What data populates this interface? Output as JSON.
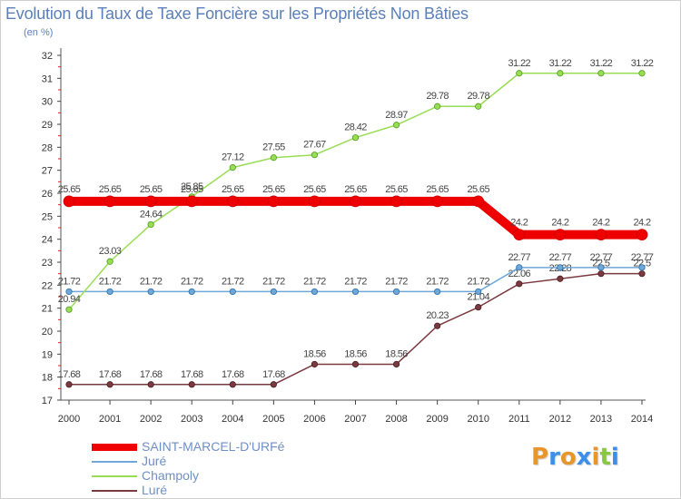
{
  "chart_data": {
    "type": "line",
    "title": "Evolution du Taux de Taxe Foncière sur les Propriétés Non Bâties",
    "ylabel": "(en %)",
    "xlabel": "",
    "x": [
      "2000",
      "2001",
      "2002",
      "2003",
      "2004",
      "2005",
      "2006",
      "2007",
      "2008",
      "2009",
      "2010",
      "2011",
      "2012",
      "2013",
      "2014"
    ],
    "ylim": [
      17,
      32
    ],
    "yticks": [
      17,
      18,
      19,
      20,
      21,
      22,
      23,
      24,
      25,
      26,
      27,
      28,
      29,
      30,
      31,
      32
    ],
    "grid": false,
    "series": [
      {
        "name": "SAINT-MARCEL-D'URFé",
        "color": "#ee0000",
        "values": [
          25.65,
          25.65,
          25.65,
          25.65,
          25.65,
          25.65,
          25.65,
          25.65,
          25.65,
          25.65,
          25.65,
          24.2,
          24.2,
          24.2,
          24.2
        ],
        "labels": [
          "25.65",
          "25.65",
          "25.65",
          "25.65",
          "25.65",
          "25.65",
          "25.65",
          "25.65",
          "25.65",
          "25.65",
          "25.65",
          "24.2",
          "24.2",
          "24.2",
          "24.2"
        ]
      },
      {
        "name": "Juré",
        "color": "#6fa8d8",
        "values": [
          21.72,
          21.72,
          21.72,
          21.72,
          21.72,
          21.72,
          21.72,
          21.72,
          21.72,
          21.72,
          21.72,
          22.77,
          22.77,
          22.77,
          22.77
        ],
        "labels": [
          "21.72",
          "21.72",
          "21.72",
          "21.72",
          "21.72",
          "21.72",
          "21.72",
          "21.72",
          "21.72",
          "21.72",
          "21.72",
          "22.77",
          "22.77",
          "22.77",
          "22.77"
        ]
      },
      {
        "name": "Champoly",
        "color": "#99dd55",
        "values": [
          20.94,
          23.03,
          24.64,
          25.85,
          27.12,
          27.55,
          27.67,
          28.42,
          28.97,
          29.78,
          29.78,
          31.22,
          31.22,
          31.22,
          31.22
        ],
        "labels": [
          "20.94",
          "23.03",
          "24.64",
          "25.85",
          "27.12",
          "27.55",
          "27.67",
          "28.42",
          "28.97",
          "29.78",
          "29.78",
          "31.22",
          "31.22",
          "31.22",
          "31.22"
        ]
      },
      {
        "name": "Luré",
        "color": "#7a3a3f",
        "values": [
          17.68,
          17.68,
          17.68,
          17.68,
          17.68,
          17.68,
          18.56,
          18.56,
          18.56,
          20.23,
          21.04,
          22.06,
          22.28,
          22.5,
          22.5
        ],
        "labels": [
          "17.68",
          "17.68",
          "17.68",
          "17.68",
          "17.68",
          "17.68",
          "18.56",
          "18.56",
          "18.56",
          "20.23",
          "21.04",
          "22.06",
          "22.28",
          "22.5",
          "22.5"
        ]
      }
    ]
  },
  "legend": [
    "SAINT-MARCEL-D'URFé",
    "Juré",
    "Champoly",
    "Luré"
  ],
  "logo": {
    "letters": [
      "P",
      "r",
      "o",
      "x",
      "i",
      "t",
      "i"
    ],
    "colors": [
      "#e8952a",
      "#3d8ee8",
      "#e8952a",
      "#3d8ee8",
      "#e8952a",
      "#88c840",
      "#3d8ee8"
    ]
  }
}
